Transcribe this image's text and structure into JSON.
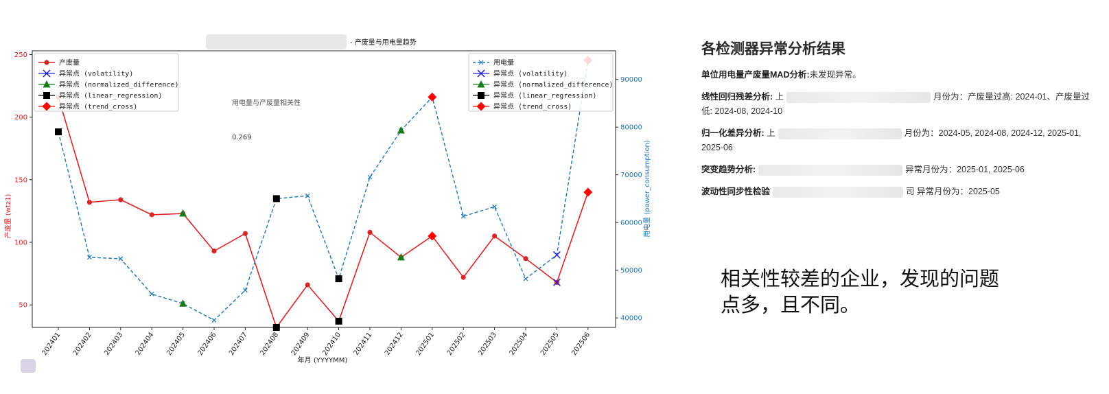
{
  "chart_data": {
    "type": "line",
    "title": "- 产废量与用电量趋势",
    "xlabel": "年月 (YYYYMM)",
    "ylabel_left": "产废量 (wtz1)",
    "ylabel_right": "用电量 (power_consumption)",
    "ylim_left": [
      32,
      253
    ],
    "ylim_right": [
      38000,
      96000
    ],
    "left_ticks": [
      50,
      100,
      150,
      200,
      250
    ],
    "right_ticks": [
      40000,
      50000,
      60000,
      70000,
      80000,
      90000
    ],
    "grid": false,
    "categories": [
      "202401",
      "202402",
      "202403",
      "202404",
      "202405",
      "202406",
      "202407",
      "202408",
      "202409",
      "202410",
      "202411",
      "202412",
      "202501",
      "202502",
      "202503",
      "202504",
      "202505",
      "202506"
    ],
    "series": [
      {
        "name": "产废量",
        "axis": "left",
        "color": "#d62728",
        "values": [
          216,
          132,
          134,
          122,
          123,
          93,
          107,
          32,
          66,
          37,
          108,
          88,
          105,
          72,
          105,
          87,
          68,
          140
        ]
      },
      {
        "name": "用电量",
        "axis": "right",
        "color": "#1f77b4",
        "values": [
          79000,
          52700,
          52400,
          45000,
          43000,
          39500,
          45800,
          65000,
          65600,
          48200,
          69500,
          79300,
          86300,
          61300,
          63300,
          48200,
          53200,
          94000
        ]
      }
    ],
    "anomalies": {
      "left": [
        {
          "method": "normalized_difference",
          "index": 4
        },
        {
          "method": "linear_regression",
          "index": 7
        },
        {
          "method": "linear_regression",
          "index": 9
        },
        {
          "method": "normalized_difference",
          "index": 11
        },
        {
          "method": "trend_cross",
          "index": 12
        },
        {
          "method": "volatility",
          "index": 16
        },
        {
          "method": "trend_cross",
          "index": 17
        }
      ],
      "right": [
        {
          "method": "linear_regression",
          "index": 0
        },
        {
          "method": "normalized_difference",
          "index": 4
        },
        {
          "method": "linear_regression",
          "index": 7
        },
        {
          "method": "linear_regression",
          "index": 9
        },
        {
          "method": "normalized_difference",
          "index": 11
        },
        {
          "method": "trend_cross",
          "index": 12
        },
        {
          "method": "volatility",
          "index": 16
        },
        {
          "method": "trend_cross",
          "index": 17
        }
      ]
    },
    "legend_left": {
      "placement": "top-left",
      "entries": [
        {
          "label": "产废量",
          "kind": "series-left"
        },
        {
          "label": "异常点 (volatility)",
          "kind": "volatility"
        },
        {
          "label": "异常点 (normalized_difference)",
          "kind": "normalized_difference"
        },
        {
          "label": "异常点 (linear_regression)",
          "kind": "linear_regression"
        },
        {
          "label": "异常点 (trend_cross)",
          "kind": "trend_cross"
        }
      ]
    },
    "legend_right": {
      "placement": "top-right",
      "entries": [
        {
          "label": "用电量",
          "kind": "series-right"
        },
        {
          "label": "异常点 (volatility)",
          "kind": "volatility"
        },
        {
          "label": "异常点 (normalized_difference)",
          "kind": "normalized_difference"
        },
        {
          "label": "异常点 (linear_regression)",
          "kind": "linear_regression"
        },
        {
          "label": "异常点 (trend_cross)",
          "kind": "trend_cross"
        }
      ]
    },
    "correlation": {
      "label": "用电量与产废量相关性",
      "value": "0.269"
    },
    "colors": {
      "volatility": "#1f1fd6",
      "normalized_difference": "#1a7a1a",
      "linear_regression": "#000000",
      "trend_cross": "#ff0000",
      "left_axis": "#d62728",
      "right_axis": "#1f77b4"
    }
  },
  "analysis": {
    "title": "各检测器异常分析结果",
    "items": [
      {
        "label": "单位用电量产废量MAD分析:",
        "text": "未发现异常。",
        "redacted": false
      },
      {
        "label": "线性回归残差分析:",
        "lead": "上",
        "text": "月份为：产废量过高: 2024-01、产废量过低: 2024-08, 2024-10",
        "redacted": true
      },
      {
        "label": "归一化差异分析:",
        "lead": "上",
        "text": "月份为：2024-05, 2024-08, 2024-12, 2025-01, 2025-06",
        "redacted": true
      },
      {
        "label": "突变趋势分析:",
        "lead": "",
        "text": "异常月份为：2025-01, 2025-06",
        "redacted": true
      },
      {
        "label": "波动性同步性检验",
        "lead": "",
        "text": "司 异常月份为：2025-05",
        "redacted": true
      }
    ]
  },
  "note": "相关性较差的企业，发现的问题点多，且不同。"
}
